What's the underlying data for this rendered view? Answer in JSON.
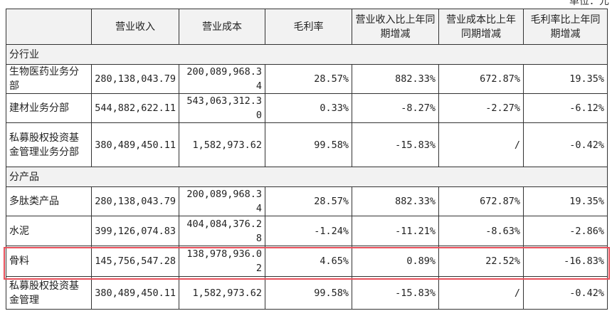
{
  "unit": "单位：元",
  "headers": [
    "",
    "营业收入",
    "营业成本",
    "毛利率",
    "营业收入比上年同期增减",
    "营业成本比上年同期增减",
    "毛利率比上年同期增减"
  ],
  "sections": [
    {
      "title": "分行业",
      "rows": [
        [
          "生物医药业务分部",
          "280,138,043.79",
          "200,089,968.34",
          "28.57%",
          "882.33%",
          "672.87%",
          "19.35%"
        ],
        [
          "建材业务分部",
          "544,882,622.11",
          "543,063,312.30",
          "0.33%",
          "-8.27%",
          "-2.27%",
          "-6.12%"
        ],
        [
          "私募股权投资基金管理业务分部",
          "380,489,450.11",
          "1,582,973.62",
          "99.58%",
          "-15.83%",
          "/",
          "-0.42%"
        ]
      ]
    },
    {
      "title": "分产品",
      "rows": [
        [
          "多肽类产品",
          "280,138,043.79",
          "200,089,968.34",
          "28.57%",
          "882.33%",
          "672.87%",
          "19.35%"
        ],
        [
          "水泥",
          "399,126,074.83",
          "404,084,376.28",
          "-1.24%",
          "-11.21%",
          "-8.63%",
          "-2.86%"
        ],
        [
          "骨料",
          "145,756,547.28",
          "138,978,936.02",
          "4.65%",
          "0.89%",
          "22.52%",
          "-16.83%"
        ],
        [
          "私募股权投资基金管理",
          "380,489,450.11",
          "1,582,973.62",
          "99.58%",
          "-15.83%",
          "/",
          "-0.42%"
        ]
      ]
    }
  ],
  "highlight_color": "#e8505b"
}
